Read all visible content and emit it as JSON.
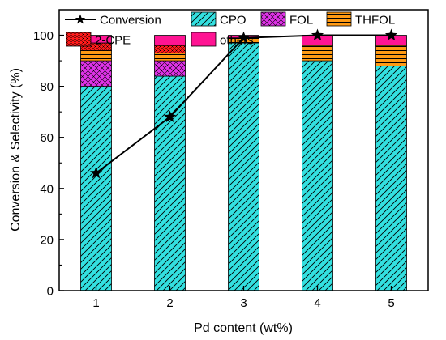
{
  "colors": {
    "CPO": "#33e0e0",
    "FOL": "#e033e8",
    "THFOL": "#ff9a14",
    "2-CPE": "#ff1a1a",
    "others": "#ff1493",
    "conversion": "#000000",
    "hatch_stroke": "#000000"
  },
  "chart_data": {
    "type": "bar",
    "stacked": true,
    "xlabel": "Pd content (wt%)",
    "ylabel": "Conversion & Selectivity (%)",
    "xlim": [
      0.5,
      5.5
    ],
    "ylim": [
      0,
      110
    ],
    "xticks": [
      1,
      2,
      3,
      4,
      5
    ],
    "yticks": [
      0,
      20,
      40,
      60,
      80,
      100
    ],
    "categories": [
      "1",
      "2",
      "3",
      "4",
      "5"
    ],
    "series": [
      {
        "name": "CPO",
        "pattern": "diagonal-hatch",
        "values": [
          80,
          84,
          97,
          90,
          88
        ]
      },
      {
        "name": "FOL",
        "pattern": "crosshatch",
        "values": [
          10,
          6,
          0,
          0,
          0
        ]
      },
      {
        "name": "THFOL",
        "pattern": "horizontal-lines",
        "values": [
          4,
          3,
          2,
          6,
          8
        ]
      },
      {
        "name": "2-CPE",
        "pattern": "diamond-crosshatch",
        "values": [
          3,
          3,
          0,
          0,
          0
        ]
      },
      {
        "name": "others",
        "pattern": "solid",
        "values": [
          3,
          4,
          1,
          4,
          4
        ]
      }
    ],
    "line": {
      "name": "Conversion",
      "marker": "star",
      "x": [
        1,
        2,
        3,
        4,
        5
      ],
      "values": [
        46,
        68,
        99,
        100,
        100
      ]
    },
    "legend": {
      "placement": "top",
      "entries": [
        "Conversion",
        "CPO",
        "FOL",
        "THFOL",
        "2-CPE",
        "others"
      ]
    },
    "grid": false
  }
}
